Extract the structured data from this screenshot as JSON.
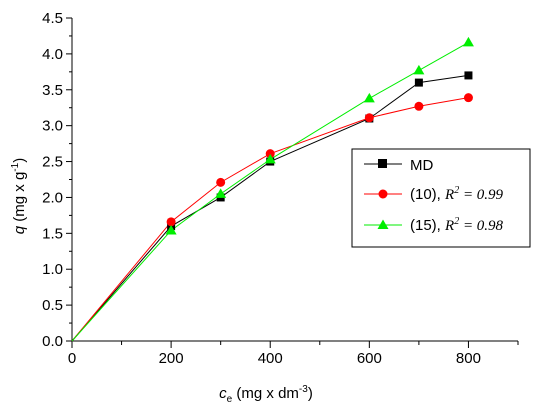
{
  "chart_data": {
    "type": "line",
    "title": "",
    "xlabel": {
      "var": "c",
      "sub": "e",
      "unit_prefix": " (mg x dm",
      "unit_sup": "-3",
      "unit_suffix": ")"
    },
    "ylabel": {
      "var": "q",
      "unit_prefix": " (mg x g",
      "unit_sup": "-1",
      "unit_suffix": ")"
    },
    "xlim": [
      0,
      900
    ],
    "ylim": [
      0,
      4.5
    ],
    "xticks": [
      0,
      200,
      400,
      600,
      800
    ],
    "xtick_labels": [
      "0",
      "200",
      "400",
      "600",
      "800"
    ],
    "yticks": [
      0,
      0.5,
      1.0,
      1.5,
      2.0,
      2.5,
      3.0,
      3.5,
      4.0,
      4.5
    ],
    "ytick_labels": [
      "0.0",
      "0.5",
      "1.0",
      "1.5",
      "2.0",
      "2.5",
      "3.0",
      "3.5",
      "4.0",
      "4.5"
    ],
    "grid": false,
    "legend_position": "middle-right",
    "series": [
      {
        "name": "MD",
        "marker": "square",
        "color": "#000000",
        "x": [
          0,
          200,
          300,
          400,
          600,
          700,
          800
        ],
        "y": [
          0,
          1.6,
          2.0,
          2.5,
          3.1,
          3.6,
          3.7
        ]
      },
      {
        "name": "(10), ",
        "r2_label": "R",
        "r2_sup": "2",
        "r2_value": " = 0.99",
        "marker": "circle",
        "color": "#ff0000",
        "x": [
          0,
          200,
          300,
          400,
          600,
          700,
          800
        ],
        "y": [
          0,
          1.66,
          2.21,
          2.61,
          3.11,
          3.27,
          3.39
        ]
      },
      {
        "name": "(15), ",
        "r2_label": "R",
        "r2_sup": "2",
        "r2_value": " = 0.98",
        "marker": "triangle",
        "color": "#00ee00",
        "x": [
          0,
          200,
          300,
          400,
          600,
          700,
          800
        ],
        "y": [
          0,
          1.54,
          2.05,
          2.53,
          3.38,
          3.77,
          4.16
        ]
      }
    ]
  }
}
